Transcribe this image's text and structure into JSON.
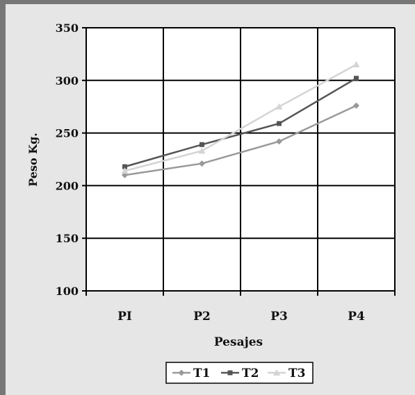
{
  "chart_data": {
    "type": "line",
    "title": "",
    "xlabel": "Pesajes",
    "ylabel": "Peso Kg.",
    "categories": [
      "PI",
      "P2",
      "P3",
      "P4"
    ],
    "ylim": [
      100,
      350
    ],
    "yticks": [
      100,
      150,
      200,
      250,
      300,
      350
    ],
    "grid": true,
    "legend_position": "bottom",
    "series": [
      {
        "name": "T1",
        "values": [
          210,
          221,
          242,
          276
        ],
        "color": "#999999",
        "marker": "diamond"
      },
      {
        "name": "T2",
        "values": [
          218,
          239,
          259,
          302
        ],
        "color": "#555555",
        "marker": "square"
      },
      {
        "name": "T3",
        "values": [
          214,
          233,
          275,
          315
        ],
        "color": "#d4d4d4",
        "marker": "triangle"
      }
    ]
  },
  "colors": {
    "border": "#777777",
    "background": "#e6e6e6",
    "plot_area": "#ffffff",
    "grid": "#000000"
  }
}
